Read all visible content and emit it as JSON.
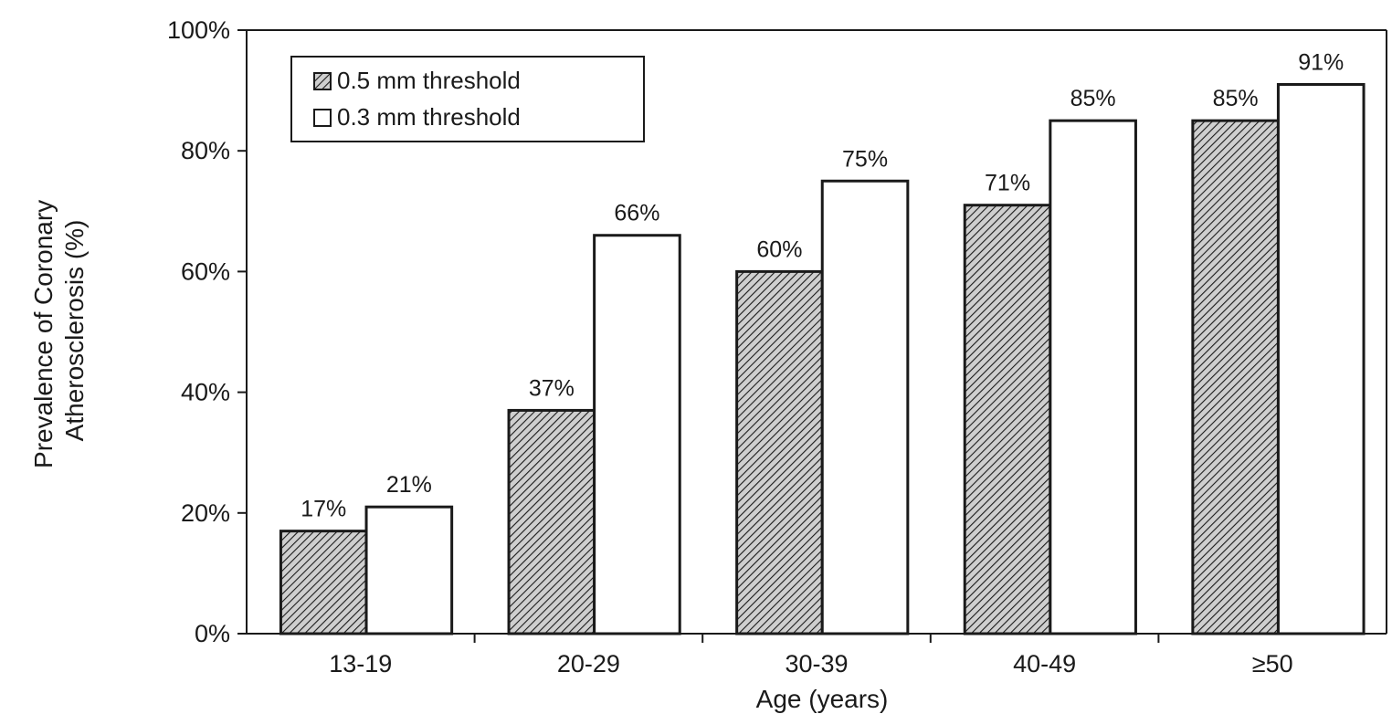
{
  "chart_data": {
    "type": "bar",
    "categories": [
      "13-19",
      "20-29",
      "30-39",
      "40-49",
      "≥50"
    ],
    "series": [
      {
        "name": "0.5 mm threshold",
        "values": [
          17,
          37,
          60,
          71,
          85
        ],
        "labels": [
          "17%",
          "37%",
          "60%",
          "71%",
          "85%"
        ],
        "fill": "hatched"
      },
      {
        "name": "0.3 mm threshold",
        "values": [
          21,
          66,
          75,
          85,
          91
        ],
        "labels": [
          "21%",
          "66%",
          "75%",
          "85%",
          "91%"
        ],
        "fill": "white"
      }
    ],
    "xlabel": "Age (years)",
    "ylabel_lines": [
      "Prevalence of Coronary",
      "Atherosclerosis (%)"
    ],
    "ylim": [
      0,
      100
    ],
    "yticks": [
      0,
      20,
      40,
      60,
      80,
      100
    ],
    "ytick_labels": [
      "0%",
      "20%",
      "40%",
      "60%",
      "80%",
      "100%"
    ],
    "legend_position": "top-left",
    "grid": false,
    "colors": {
      "ink": "#1a1a1a",
      "hatch_bg": "#cfcfcf",
      "background": "#ffffff"
    }
  }
}
